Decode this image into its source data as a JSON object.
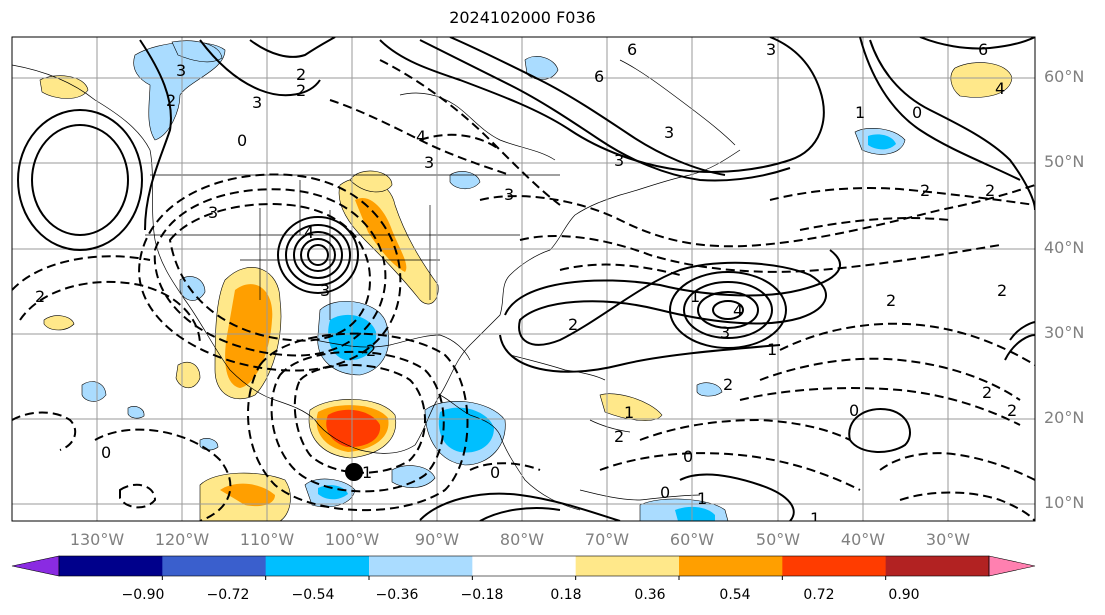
{
  "title": "2024102000 F036",
  "lat_labels": [
    "60°N",
    "50°N",
    "40°N",
    "30°N",
    "20°N",
    "10°N"
  ],
  "lon_labels": [
    "130°W",
    "120°W",
    "110°W",
    "100°W",
    "90°W",
    "80°W",
    "70°W",
    "60°W",
    "50°W",
    "40°W",
    "30°W"
  ],
  "colorbar": {
    "ticks": [
      "−0.90",
      "−0.72",
      "−0.54",
      "−0.36",
      "−0.18",
      "0.18",
      "0.36",
      "0.54",
      "0.72",
      "0.90"
    ],
    "colors": [
      "#8a2be2",
      "#00008b",
      "#3a5fcd",
      "#00bfff",
      "#aadcff",
      "#ffffff",
      "#ffe88a",
      "#ff9f00",
      "#ff3c00",
      "#b22222",
      "#ff80b0"
    ]
  },
  "contour_labels": [
    "3",
    "3",
    "2",
    "2",
    "6",
    "6",
    "6",
    "3",
    "3",
    "4",
    "0",
    "3",
    "3",
    "4",
    "3",
    "1",
    "0",
    "3",
    "2",
    "2",
    "2",
    "2",
    "2",
    "1",
    "4",
    "3",
    "2",
    "2",
    "3",
    "1",
    "2",
    "2",
    "0",
    "2",
    "1",
    "0",
    "1",
    "0",
    "2",
    "2",
    "4",
    "1",
    "0",
    "1",
    "0"
  ]
}
